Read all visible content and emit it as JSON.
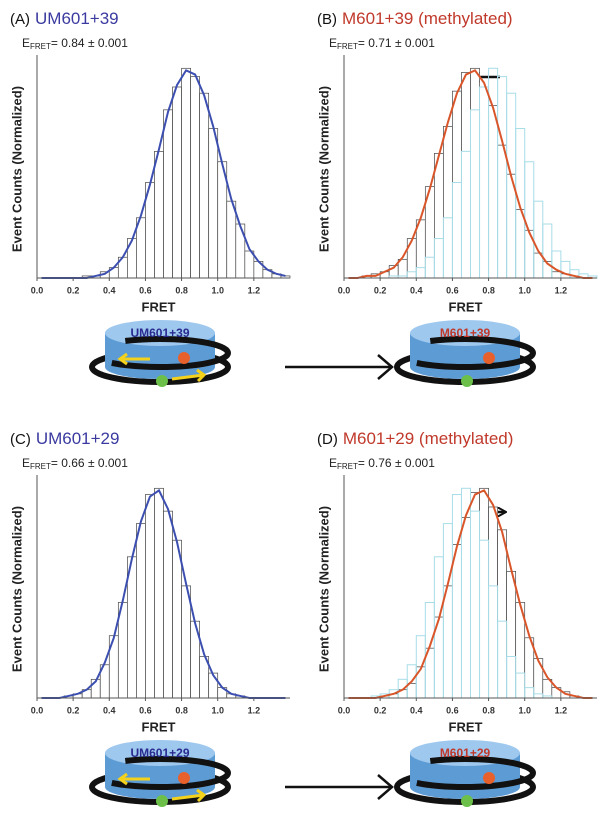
{
  "chart_data": [
    {
      "type": "histogram",
      "panel_label": "(A)",
      "title": "UM601+39",
      "title_color": "#3a3aa0",
      "efret_symbol": "E",
      "efret_sub": "FRET",
      "efret_text": "= 0.84 ± 0.001",
      "x_label": "FRET",
      "y_label": "Event Counts (Normalized)",
      "bins": [
        0,
        0.05,
        0.1,
        0.15,
        0.2,
        0.25,
        0.3,
        0.35,
        0.4,
        0.45,
        0.5,
        0.55,
        0.6,
        0.65,
        0.7,
        0.75,
        0.8,
        0.85,
        0.9,
        0.95,
        1,
        1.05,
        1.1,
        1.15,
        1.2,
        1.25,
        1.3,
        1.35,
        1.4
      ],
      "counts": [
        0,
        0,
        0,
        0,
        0,
        0.01,
        0.01,
        0.03,
        0.05,
        0.1,
        0.19,
        0.29,
        0.46,
        0.61,
        0.81,
        0.92,
        1.01,
        0.97,
        0.89,
        0.72,
        0.56,
        0.37,
        0.26,
        0.13,
        0.08,
        0.04,
        0.02,
        0.01
      ],
      "color": "#ffffff",
      "fit": {
        "color": "#3c4fb0",
        "x": [
          0.025,
          0.075,
          0.125,
          0.175,
          0.225,
          0.275,
          0.325,
          0.375,
          0.425,
          0.475,
          0.525,
          0.575,
          0.625,
          0.675,
          0.725,
          0.775,
          0.825,
          0.875,
          0.925,
          0.975,
          1.025,
          1.075,
          1.125,
          1.175,
          1.225,
          1.275,
          1.325,
          1.375
        ],
        "values": [
          0,
          0,
          0,
          0,
          0,
          0,
          0.01,
          0.02,
          0.05,
          0.1,
          0.18,
          0.3,
          0.45,
          0.62,
          0.8,
          0.93,
          1,
          0.98,
          0.88,
          0.73,
          0.55,
          0.38,
          0.25,
          0.14,
          0.08,
          0.04,
          0.02,
          0.01
        ]
      },
      "xlim": [
        0,
        1.4
      ],
      "xticks": [
        {
          "value": 0,
          "label": "0.0"
        },
        0.2,
        0.4,
        0.6,
        0.8,
        {
          "value": 1,
          "label": "1.0"
        },
        1.2
      ],
      "ylim": [
        0,
        1.05
      ]
    },
    {
      "type": "histogram",
      "panel_label": "(B)",
      "title": "M601+39 (methylated)",
      "title_color": "#c0392b",
      "efret_symbol": "E",
      "efret_sub": "FRET",
      "efret_text": "= 0.71 ± 0.001",
      "x_label": "FRET",
      "y_label": "Event Counts (Normalized)",
      "bins": [
        0,
        0.05,
        0.1,
        0.15,
        0.2,
        0.25,
        0.3,
        0.35,
        0.4,
        0.45,
        0.5,
        0.55,
        0.6,
        0.65,
        0.7,
        0.75,
        0.8,
        0.85,
        0.9,
        0.95,
        1,
        1.05,
        1.1,
        1.15,
        1.2,
        1.25,
        1.3,
        1.35,
        1.4
      ],
      "counts": [
        0,
        0,
        0.01,
        0.02,
        0.03,
        0.06,
        0.09,
        0.19,
        0.28,
        0.44,
        0.6,
        0.73,
        0.9,
        0.99,
        1.01,
        0.92,
        0.83,
        0.64,
        0.5,
        0.33,
        0.23,
        0.12,
        0.08,
        0.03,
        0.02,
        0.01,
        0,
        0
      ],
      "color": "#ffffff",
      "overlay": {
        "color": "#a8dde8",
        "counts": [
          0,
          0,
          0,
          0,
          0,
          0.01,
          0.01,
          0.03,
          0.05,
          0.1,
          0.19,
          0.29,
          0.46,
          0.61,
          0.81,
          0.92,
          1.01,
          0.97,
          0.89,
          0.72,
          0.56,
          0.37,
          0.26,
          0.13,
          0.08,
          0.04,
          0.02,
          0.01
        ]
      },
      "fit": {
        "color": "#d9552a",
        "x": [
          0.025,
          0.075,
          0.125,
          0.175,
          0.225,
          0.275,
          0.325,
          0.375,
          0.425,
          0.475,
          0.525,
          0.575,
          0.625,
          0.675,
          0.725,
          0.775,
          0.825,
          0.875,
          0.925,
          0.975,
          1.025,
          1.075,
          1.125,
          1.175,
          1.225,
          1.275,
          1.325,
          1.375
        ],
        "values": [
          0,
          0,
          0.01,
          0.01,
          0.03,
          0.05,
          0.1,
          0.18,
          0.29,
          0.43,
          0.59,
          0.75,
          0.89,
          0.98,
          1,
          0.94,
          0.82,
          0.66,
          0.49,
          0.34,
          0.22,
          0.13,
          0.07,
          0.04,
          0.02,
          0.01,
          0,
          0
        ]
      },
      "xlim": [
        0,
        1.4
      ],
      "xticks": [
        {
          "value": 0,
          "label": "0.0"
        },
        0.2,
        0.4,
        0.6,
        0.8,
        {
          "value": 1,
          "label": "1.0"
        },
        1.2
      ],
      "ylim": [
        0,
        1.05
      ]
    },
    {
      "type": "histogram",
      "panel_label": "(C)",
      "title": "UM601+29",
      "title_color": "#3a3aa0",
      "efret_symbol": "E",
      "efret_sub": "FRET",
      "efret_text": "= 0.66 ± 0.001",
      "x_label": "FRET",
      "y_label": "Event Counts (Normalized)",
      "bins": [
        0,
        0.05,
        0.1,
        0.15,
        0.2,
        0.25,
        0.3,
        0.35,
        0.4,
        0.45,
        0.5,
        0.55,
        0.6,
        0.65,
        0.7,
        0.75,
        0.8,
        0.85,
        0.9,
        0.95,
        1,
        1.05,
        1.1,
        1.15,
        1.2,
        1.25,
        1.3,
        1.35,
        1.4
      ],
      "counts": [
        0,
        0,
        0,
        0.01,
        0.02,
        0.04,
        0.09,
        0.16,
        0.3,
        0.46,
        0.68,
        0.84,
        0.98,
        1.01,
        0.9,
        0.76,
        0.54,
        0.37,
        0.2,
        0.12,
        0.05,
        0.02,
        0.01,
        0,
        0,
        0,
        0,
        0
      ],
      "color": "#ffffff",
      "fit": {
        "color": "#3c4fb0",
        "x": [
          0.025,
          0.075,
          0.125,
          0.175,
          0.225,
          0.275,
          0.325,
          0.375,
          0.425,
          0.475,
          0.525,
          0.575,
          0.625,
          0.675,
          0.725,
          0.775,
          0.825,
          0.875,
          0.925,
          0.975,
          1.025,
          1.075,
          1.125,
          1.175,
          1.225,
          1.275,
          1.325,
          1.375
        ],
        "values": [
          0,
          0,
          0,
          0.01,
          0.02,
          0.04,
          0.08,
          0.17,
          0.29,
          0.47,
          0.67,
          0.85,
          0.97,
          1,
          0.91,
          0.75,
          0.55,
          0.36,
          0.21,
          0.11,
          0.05,
          0.02,
          0.01,
          0,
          0,
          0,
          0,
          0
        ]
      },
      "xlim": [
        0,
        1.4
      ],
      "xticks": [
        {
          "value": 0,
          "label": "0.0"
        },
        0.2,
        0.4,
        0.6,
        0.8,
        {
          "value": 1,
          "label": "1.0"
        },
        1.2
      ],
      "ylim": [
        0,
        1.05
      ]
    },
    {
      "type": "histogram",
      "panel_label": "(D)",
      "title": "M601+29 (methylated)",
      "title_color": "#c0392b",
      "efret_symbol": "E",
      "efret_sub": "FRET",
      "efret_text": "= 0.76 ± 0.001",
      "x_label": "FRET",
      "y_label": "Event Counts (Normalized)",
      "bins": [
        0,
        0.05,
        0.1,
        0.15,
        0.2,
        0.25,
        0.3,
        0.35,
        0.4,
        0.45,
        0.5,
        0.55,
        0.6,
        0.65,
        0.7,
        0.75,
        0.8,
        0.85,
        0.9,
        0.95,
        1,
        1.05,
        1.1,
        1.15,
        1.2,
        1.25,
        1.3,
        1.35,
        1.4
      ],
      "counts": [
        0,
        0,
        0,
        0,
        0.01,
        0.02,
        0.04,
        0.07,
        0.15,
        0.24,
        0.39,
        0.54,
        0.74,
        0.87,
        0.99,
        1.01,
        0.92,
        0.81,
        0.61,
        0.46,
        0.29,
        0.19,
        0.09,
        0.05,
        0.03,
        0.01,
        0,
        0
      ],
      "color": "#ffffff",
      "overlay": {
        "color": "#a8dde8",
        "counts": [
          0,
          0,
          0,
          0.01,
          0.02,
          0.04,
          0.09,
          0.16,
          0.3,
          0.46,
          0.68,
          0.84,
          0.98,
          1.01,
          0.9,
          0.76,
          0.54,
          0.37,
          0.2,
          0.12,
          0.05,
          0.02,
          0.01,
          0,
          0,
          0,
          0,
          0
        ]
      },
      "fit": {
        "color": "#d9552a",
        "x": [
          0.025,
          0.075,
          0.125,
          0.175,
          0.225,
          0.275,
          0.325,
          0.375,
          0.425,
          0.475,
          0.525,
          0.575,
          0.625,
          0.675,
          0.725,
          0.775,
          0.825,
          0.875,
          0.925,
          0.975,
          1.025,
          1.075,
          1.125,
          1.175,
          1.225,
          1.275,
          1.325,
          1.375
        ],
        "values": [
          0,
          0,
          0,
          0,
          0.01,
          0.02,
          0.04,
          0.08,
          0.14,
          0.25,
          0.38,
          0.55,
          0.73,
          0.88,
          0.98,
          1,
          0.93,
          0.8,
          0.62,
          0.45,
          0.3,
          0.18,
          0.1,
          0.05,
          0.02,
          0.01,
          0,
          0
        ]
      },
      "xlim": [
        0,
        1.4
      ],
      "xticks": [
        {
          "value": 0,
          "label": "0.0"
        },
        0.2,
        0.4,
        0.6,
        0.8,
        {
          "value": 1,
          "label": "1.0"
        },
        1.2
      ],
      "ylim": [
        0,
        1.05
      ]
    }
  ],
  "diagrams": [
    {
      "left": "UM601+39",
      "right": "M601+39"
    },
    {
      "left": "UM601+29",
      "right": "M601+29"
    }
  ]
}
